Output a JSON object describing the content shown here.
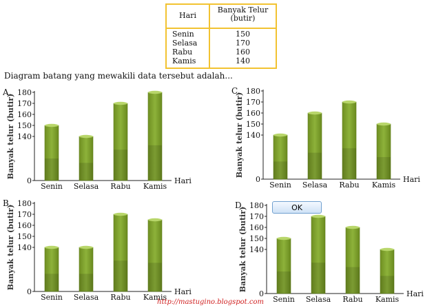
{
  "table": {
    "header_day": "Hari",
    "header_value_line1": "Banyak Telur",
    "header_value_line2": "(butir)",
    "rows": [
      {
        "day": "Senin",
        "value": "150"
      },
      {
        "day": "Selasa",
        "value": "170"
      },
      {
        "day": "Rabu",
        "value": "160"
      },
      {
        "day": "Kamis",
        "value": "140"
      }
    ]
  },
  "question": "Diagram batang yang mewakili data tersebut adalah...",
  "ok_label": "OK",
  "footer": "http://mastugino.blogspot.com",
  "bar_color": "#8db23a",
  "chart_data": [
    {
      "type": "bar",
      "option": "A.",
      "categories": [
        "Senin",
        "Selasa",
        "Rabu",
        "Kamis"
      ],
      "values": [
        150,
        140,
        170,
        180
      ],
      "xlabel": "Hari",
      "ylabel": "Banyak telur (butir)",
      "ylim": [
        0,
        180
      ],
      "yticks": [
        0,
        140,
        150,
        160,
        170,
        180
      ]
    },
    {
      "type": "bar",
      "option": "B.",
      "categories": [
        "Senin",
        "Selasa",
        "Rabu",
        "Kamis"
      ],
      "values": [
        140,
        140,
        170,
        165
      ],
      "xlabel": "Hari",
      "ylabel": "Banyak telur (butir)",
      "ylim": [
        0,
        180
      ],
      "yticks": [
        0,
        140,
        150,
        160,
        170,
        180
      ]
    },
    {
      "type": "bar",
      "option": "C.",
      "categories": [
        "Senin",
        "Selasa",
        "Rabu",
        "Kamis"
      ],
      "values": [
        140,
        160,
        170,
        150
      ],
      "xlabel": "Hari",
      "ylabel": "Banyak telur (butir)",
      "ylim": [
        0,
        180
      ],
      "yticks": [
        0,
        140,
        150,
        160,
        170,
        180
      ]
    },
    {
      "type": "bar",
      "option": "D.",
      "categories": [
        "Senin",
        "Selasa",
        "Rabu",
        "Kamis"
      ],
      "values": [
        150,
        170,
        160,
        140
      ],
      "xlabel": "Hari",
      "ylabel": "Banyak telur (butir)",
      "ylim": [
        0,
        180
      ],
      "yticks": [
        0,
        140,
        150,
        160,
        170,
        180
      ]
    }
  ]
}
